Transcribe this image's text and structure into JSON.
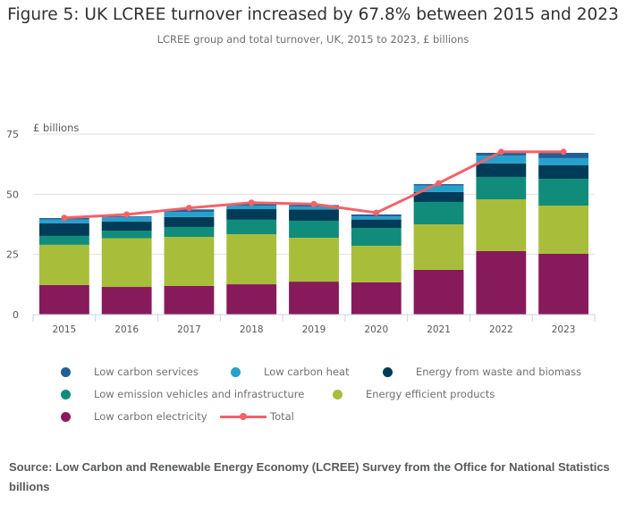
{
  "header": {
    "title": "Figure 5: UK LCREE turnover increased by 67.8% between 2015 and 2023",
    "subtitle": "LCREE group and total turnover, UK, 2015 to 2023, £ billions"
  },
  "chart_data": {
    "type": "bar",
    "stacked": true,
    "title": "Figure 5: UK LCREE turnover increased by 67.8% between 2015 and 2023",
    "subtitle": "LCREE group and total turnover, UK, 2015 to 2023, £ billions",
    "xlabel": "",
    "ylabel": "£ billions",
    "ylim": [
      0,
      75
    ],
    "yticks": [
      0,
      25,
      50,
      75
    ],
    "grid": true,
    "legend_position": "bottom",
    "categories": [
      "2015",
      "2016",
      "2017",
      "2018",
      "2019",
      "2020",
      "2021",
      "2022",
      "2023"
    ],
    "series": [
      {
        "name": "Low carbon electricity",
        "color": "#871a5b",
        "values": [
          12.3,
          11.5,
          11.9,
          12.6,
          13.7,
          13.4,
          18.6,
          26.4,
          25.3
        ]
      },
      {
        "name": "Energy efficient products",
        "color": "#a8bd3a",
        "values": [
          16.7,
          20.2,
          20.4,
          20.8,
          18.2,
          15.2,
          18.9,
          21.5,
          20.0
        ]
      },
      {
        "name": "Low emission vehicles and infrastructure",
        "color": "#118c7b",
        "values": [
          3.7,
          3.2,
          4.1,
          6.0,
          7.1,
          7.4,
          9.3,
          9.3,
          11.1
        ]
      },
      {
        "name": "Energy from waste and biomass",
        "color": "#003c57",
        "values": [
          5.2,
          3.7,
          4.1,
          4.4,
          4.7,
          3.5,
          4.1,
          5.6,
          5.6
        ]
      },
      {
        "name": "Low carbon heat",
        "color": "#27a0cc",
        "values": [
          1.6,
          1.8,
          2.2,
          1.5,
          1.2,
          1.3,
          2.7,
          3.3,
          3.0
        ]
      },
      {
        "name": "Low carbon services",
        "color": "#206095",
        "values": [
          0.6,
          0.4,
          1.0,
          0.6,
          0.6,
          0.8,
          0.6,
          1.1,
          2.2
        ]
      }
    ],
    "line_series": {
      "name": "Total",
      "color": "#f66068",
      "values": [
        40.2,
        41.6,
        44.3,
        46.5,
        45.9,
        42.3,
        54.6,
        67.6,
        67.6
      ]
    }
  },
  "legend": {
    "rows": [
      [
        {
          "label": "Low carbon services",
          "color": "#206095",
          "type": "dot"
        },
        {
          "label": "Low carbon heat",
          "color": "#27a0cc",
          "type": "dot"
        },
        {
          "label": "Energy from waste and biomass",
          "color": "#003c57",
          "type": "dot"
        }
      ],
      [
        {
          "label": "Low emission vehicles and infrastructure",
          "color": "#118c7b",
          "type": "dot"
        },
        {
          "label": "Energy efficient products",
          "color": "#a8bd3a",
          "type": "dot"
        }
      ],
      [
        {
          "label": "Low carbon electricity",
          "color": "#871a5b",
          "type": "dot"
        },
        {
          "label": "Total",
          "color": "#f66068",
          "type": "line"
        }
      ]
    ]
  },
  "footer": {
    "source": "Source: Low Carbon and Renewable Energy Economy (LCREE) Survey from the Office for National Statistics  billions"
  }
}
